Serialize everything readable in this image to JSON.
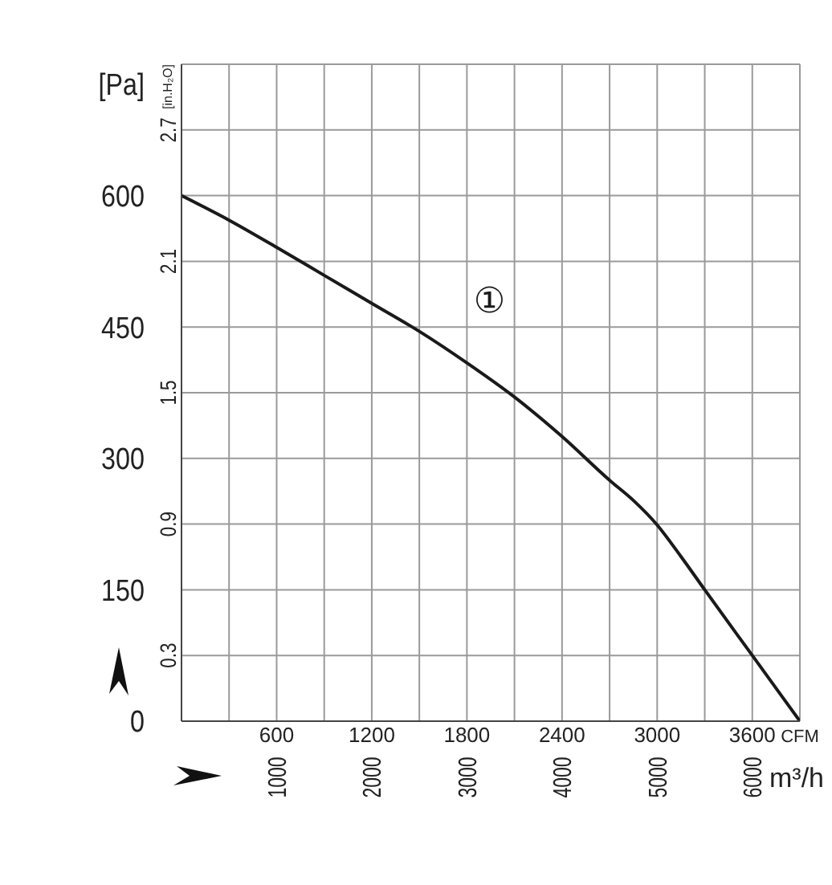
{
  "chart_data": {
    "type": "line",
    "xlabel": "CFM",
    "x2label": "m³/h",
    "ylabel": "[Pa]",
    "y2label": "[in.H₂O]",
    "x": [
      0,
      300,
      600,
      900,
      1200,
      1500,
      1800,
      2100,
      2400,
      2700,
      2850,
      3000,
      3150,
      3300,
      3600,
      3900
    ],
    "series": [
      {
        "name": "①",
        "color": "#1a1a1a",
        "values": [
          600,
          572,
          541,
          509,
          477,
          445,
          409,
          370,
          325,
          275,
          252,
          224,
          188,
          150,
          75,
          0
        ]
      }
    ],
    "xlim": [
      0,
      3900
    ],
    "xticks": [
      {
        "value": 300,
        "label": null
      },
      600,
      {
        "value": 900,
        "label": null
      },
      1200,
      {
        "value": 1500,
        "label": null
      },
      1800,
      {
        "value": 2100,
        "label": null
      },
      2400,
      {
        "value": 2700,
        "label": null
      },
      3000,
      {
        "value": 3300,
        "label": null
      },
      3600,
      {
        "value": 3900,
        "label": null
      }
    ],
    "x2lim": [
      0,
      6500
    ],
    "x2ticks": [
      1000,
      2000,
      3000,
      4000,
      5000,
      6000
    ],
    "ylim": [
      0,
      750
    ],
    "yticks": [
      0,
      150,
      300,
      450,
      600,
      {
        "value": 750,
        "label": null
      }
    ],
    "y2lim": [
      0,
      3.0
    ],
    "y2ticks": [
      0.3,
      0.9,
      1.5,
      2.1,
      2.7
    ],
    "grid": true
  }
}
